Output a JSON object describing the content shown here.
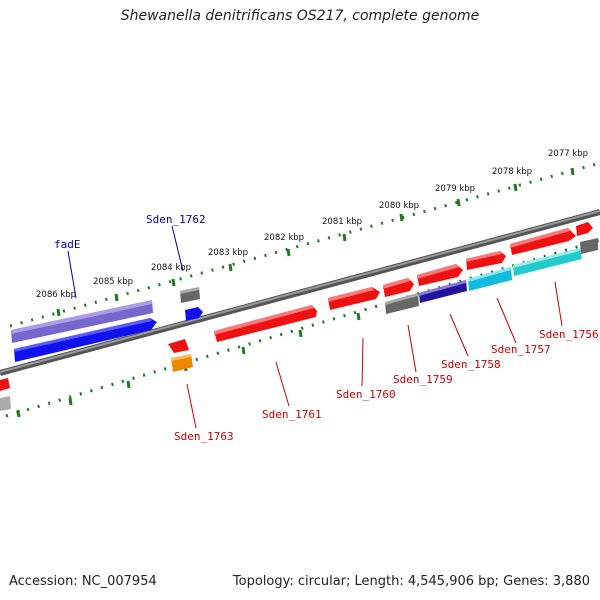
{
  "header": {
    "title": "Shewanella denitrificans OS217, complete genome"
  },
  "footer": {
    "accession": "Accession: NC_007954",
    "info": "Topology: circular; Length: 4,545,906 bp; Genes: 3,880"
  },
  "colors": {
    "backbone": "#777777",
    "tick": "#1f7a1f",
    "red_gene": "#ee1111",
    "blue_gene": "#1111ee",
    "purple_gene": "#7766cc",
    "gray_gene": "#666666",
    "orange_gene": "#ee8800",
    "cyan_gene": "#11bbdd",
    "teal_gene": "#22cccc",
    "navy_gene": "#221199",
    "label_red": "#cc0000",
    "label_blue": "#0000aa"
  },
  "scale_labels": [
    "2077 kbp",
    "2078 kbp",
    "2079 kbp",
    "2080 kbp",
    "2081 kbp",
    "2082 kbp",
    "2083 kbp",
    "2084 kbp",
    "2085 kbp",
    "2086 kbp"
  ],
  "gene_labels": [
    "fadE",
    "Sden_1762",
    "Sden_1763",
    "Sden_1761",
    "Sden_1760",
    "Sden_1759",
    "Sden_1758",
    "Sden_1757",
    "Sden_1756"
  ]
}
